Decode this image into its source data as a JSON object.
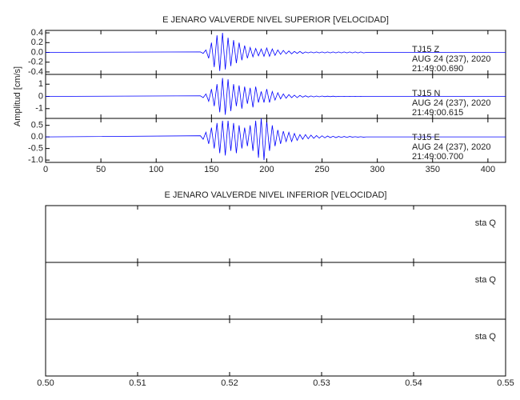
{
  "chart_data": [
    {
      "type": "line",
      "title": "E JENARO VALVERDE NIVEL SUPERIOR [VELOCIDAD]",
      "y_label": "Amplitud [cm/s]",
      "x": [
        0,
        140,
        142.5,
        145,
        147.5,
        150,
        152.5,
        155,
        157.5,
        160,
        162.5,
        165,
        167.5,
        170,
        172.5,
        175,
        177.5,
        180,
        182.5,
        185,
        187.5,
        190,
        192.5,
        195,
        197.5,
        200,
        202.5,
        205,
        207.5,
        210,
        212.5,
        215,
        217.5,
        220,
        222.5,
        225,
        227.5,
        230,
        232.5,
        235,
        237.5,
        240,
        242.5,
        245,
        247.5,
        250,
        252.5,
        255,
        257.5,
        260,
        262.5,
        265,
        267.5,
        270,
        272.5,
        275,
        277.5,
        280,
        282.5,
        285,
        287.5,
        290,
        416
      ],
      "xlim": [
        0,
        416
      ],
      "xticks": [
        0,
        50,
        100,
        150,
        200,
        250,
        300,
        350,
        400
      ],
      "panels": [
        {
          "annotations": [
            "TJ15  Z",
            "AUG 24 (237), 2020",
            "21:49:00.690"
          ],
          "color": "#0000ff",
          "ylim": [
            -0.45,
            0.45
          ],
          "yticks": [
            -0.4,
            -0.2,
            {
              "value": 0,
              "label": "0.0"
            },
            0.2,
            0.4
          ],
          "values": [
            0,
            0.01,
            -0.02,
            0.05,
            -0.12,
            0.2,
            -0.3,
            0.35,
            -0.38,
            0.4,
            -0.35,
            0.3,
            -0.28,
            0.25,
            -0.22,
            0.2,
            -0.16,
            0.14,
            -0.12,
            0.1,
            -0.09,
            0.08,
            -0.07,
            0.07,
            -0.08,
            0.09,
            -0.08,
            0.07,
            -0.06,
            0.05,
            -0.04,
            0.04,
            -0.03,
            0.03,
            -0.03,
            0.02,
            -0.02,
            0.02,
            -0.02,
            0.01,
            -0.01,
            0.01,
            -0.01,
            0.01,
            -0.01,
            0.01,
            -0.01,
            0.01,
            -0.01,
            0.01,
            -0.01,
            0.01,
            -0.01,
            0.01,
            -0.01,
            0.01,
            -0.01,
            0.01,
            -0.01,
            0.01,
            -0.01,
            0,
            0
          ]
        },
        {
          "annotations": [
            "TJ15  N",
            "AUG 24 (237), 2020",
            "21:49:00.615"
          ],
          "color": "#0000ff",
          "ylim": [
            -1.8,
            1.8
          ],
          "yticks": [
            -1,
            0,
            1
          ],
          "values": [
            0,
            0.05,
            -0.1,
            0.2,
            -0.4,
            0.6,
            -0.8,
            1.0,
            -1.3,
            1.5,
            -1.5,
            1.4,
            -1.2,
            1.0,
            -0.8,
            0.9,
            -1.0,
            0.8,
            -0.6,
            0.7,
            -0.9,
            0.8,
            -0.5,
            0.4,
            -0.5,
            0.6,
            -0.5,
            0.4,
            -0.3,
            0.3,
            -0.2,
            0.2,
            -0.15,
            0.15,
            -0.1,
            0.1,
            -0.1,
            0.08,
            -0.06,
            0.05,
            -0.05,
            0.04,
            -0.04,
            0.03,
            -0.03,
            0.03,
            -0.02,
            0.02,
            -0.02,
            0.02,
            -0.02,
            0.01,
            -0.01,
            0.01,
            -0.01,
            0.01,
            -0.01,
            0.01,
            -0.01,
            0.01,
            -0.01,
            0,
            0
          ]
        },
        {
          "annotations": [
            "TJ15  E",
            "AUG 24 (237), 2020",
            "21:49:00.700"
          ],
          "color": "#0000ff",
          "ylim": [
            -1.1,
            0.8
          ],
          "yticks": [
            {
              "value": -1,
              "label": "-1.0"
            },
            -0.5,
            {
              "value": 0,
              "label": "0.0"
            },
            0.5
          ],
          "values": [
            0,
            0.05,
            -0.1,
            0.2,
            -0.3,
            0.4,
            -0.5,
            0.6,
            -0.7,
            0.7,
            -0.8,
            0.7,
            -0.6,
            0.6,
            -0.7,
            0.5,
            -0.5,
            0.4,
            -0.4,
            0.5,
            -0.6,
            0.7,
            -0.9,
            0.8,
            -1.0,
            0.7,
            -0.6,
            0.5,
            -0.4,
            0.3,
            -0.3,
            0.25,
            -0.2,
            0.2,
            -0.2,
            0.15,
            -0.15,
            0.1,
            -0.1,
            0.1,
            -0.08,
            0.08,
            -0.06,
            0.06,
            -0.05,
            0.05,
            -0.04,
            0.04,
            -0.03,
            0.03,
            -0.03,
            0.02,
            -0.02,
            0.02,
            -0.02,
            0.02,
            -0.01,
            0.01,
            -0.01,
            0.01,
            -0.01,
            0,
            0
          ]
        }
      ]
    },
    {
      "type": "empty",
      "title": "E JENARO VALVERDE NIVEL INFERIOR [VELOCIDAD]",
      "xlim": [
        0.5,
        0.55
      ],
      "xticks": [
        {
          "value": 0.5,
          "label": "0.50"
        },
        {
          "value": 0.51,
          "label": "0.51"
        },
        {
          "value": 0.52,
          "label": "0.52"
        },
        {
          "value": 0.53,
          "label": "0.53"
        },
        {
          "value": 0.54,
          "label": "0.54"
        },
        {
          "value": 0.55,
          "label": "0.55"
        }
      ],
      "panels": [
        {
          "annotations": [
            "sta  Q"
          ]
        },
        {
          "annotations": [
            "sta  Q"
          ]
        },
        {
          "annotations": [
            "sta  Q"
          ]
        }
      ]
    }
  ]
}
